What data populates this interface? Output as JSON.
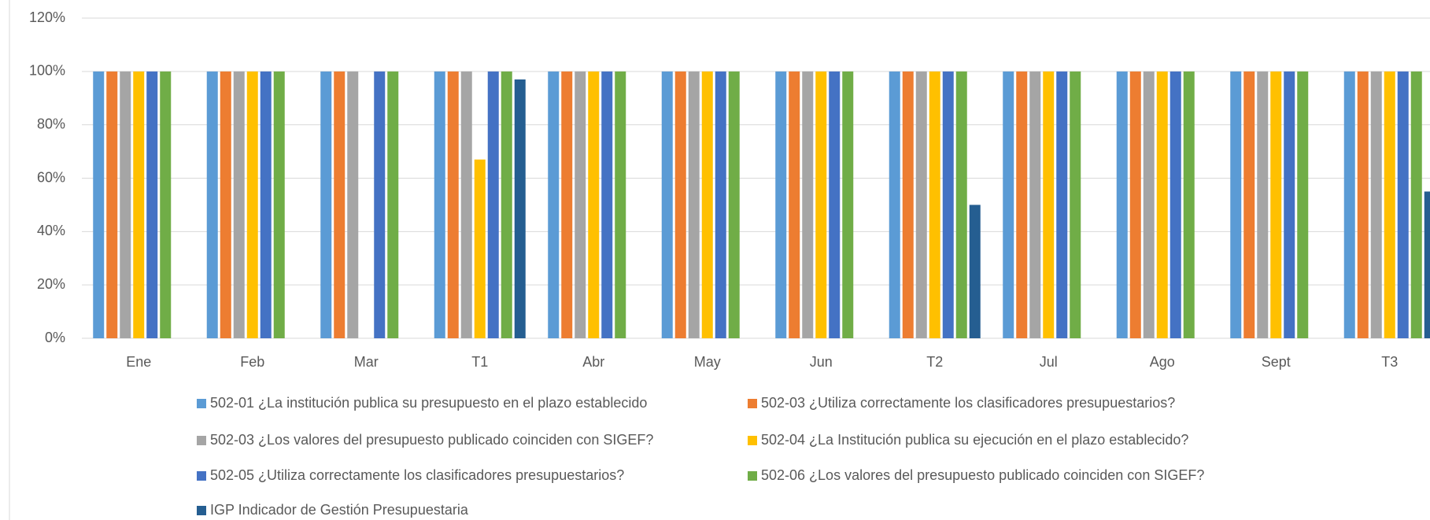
{
  "chart_data": {
    "type": "bar",
    "categories": [
      "Ene",
      "Feb",
      "Mar",
      "T1",
      "Abr",
      "May",
      "Jun",
      "T2",
      "Jul",
      "Ago",
      "Sept",
      "T3"
    ],
    "series": [
      {
        "name": "502-01 ¿La institución publica su presupuesto en el plazo establecido",
        "color": "#5b9bd5",
        "values": [
          100,
          100,
          100,
          100,
          100,
          100,
          100,
          100,
          100,
          100,
          100,
          100
        ]
      },
      {
        "name": "502-03 ¿Utiliza correctamente los clasificadores presupuestarios?",
        "color": "#ed7d31",
        "values": [
          100,
          100,
          100,
          100,
          100,
          100,
          100,
          100,
          100,
          100,
          100,
          100
        ]
      },
      {
        "name": "502-03 ¿Los valores del presupuesto publicado coinciden con SIGEF?",
        "color": "#a5a5a5",
        "values": [
          100,
          100,
          100,
          100,
          100,
          100,
          100,
          100,
          100,
          100,
          100,
          100
        ]
      },
      {
        "name": "502-04 ¿La Institución publica su ejecución en el plazo establecido?",
        "color": "#ffc000",
        "values": [
          100,
          100,
          0,
          67,
          100,
          100,
          100,
          100,
          100,
          100,
          100,
          100
        ]
      },
      {
        "name": "502-05 ¿Utiliza correctamente los clasificadores presupuestarios?",
        "color": "#4472c4",
        "values": [
          100,
          100,
          100,
          100,
          100,
          100,
          100,
          100,
          100,
          100,
          100,
          100
        ]
      },
      {
        "name": "502-06 ¿Los valores del presupuesto publicado coinciden con SIGEF?",
        "color": "#70ad47",
        "values": [
          100,
          100,
          100,
          100,
          100,
          100,
          100,
          100,
          100,
          100,
          100,
          100
        ]
      },
      {
        "name": "IGP Indicador de Gestión Presupuestaria",
        "color": "#255e91",
        "values": [
          null,
          null,
          null,
          97,
          null,
          null,
          null,
          50,
          null,
          null,
          null,
          55
        ]
      }
    ],
    "ylim": [
      0,
      120
    ],
    "yticks": [
      {
        "value": 0,
        "label": "0%"
      },
      {
        "value": 20,
        "label": "20%"
      },
      {
        "value": 40,
        "label": "40%"
      },
      {
        "value": 60,
        "label": "60%"
      },
      {
        "value": 80,
        "label": "80%"
      },
      {
        "value": 100,
        "label": "100%"
      },
      {
        "value": 120,
        "label": "120%"
      }
    ],
    "grid": true,
    "legend": "bottom"
  }
}
